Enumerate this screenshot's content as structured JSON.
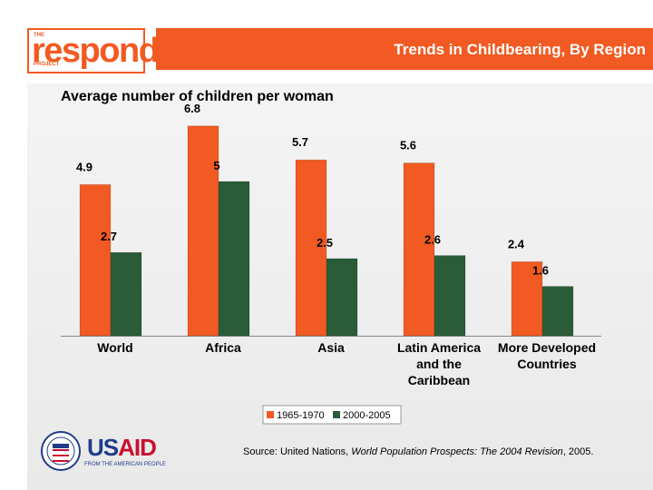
{
  "header": {
    "logo": {
      "top": "THE",
      "word": "respond",
      "bottom": "PROJECT"
    },
    "title": "Trends in Childbearing, By Region"
  },
  "chart_data": {
    "type": "bar",
    "title": "Average number of children per woman",
    "categories": [
      [
        "World"
      ],
      [
        "Africa"
      ],
      [
        "Asia"
      ],
      [
        "Latin America",
        "and the",
        "Caribbean"
      ],
      [
        "More Developed",
        "Countries"
      ]
    ],
    "series": [
      {
        "name": "1965-1970",
        "color": "#f15a22",
        "values": [
          4.9,
          6.8,
          5.7,
          5.6,
          2.4
        ],
        "labels": [
          "4.9",
          "6.8",
          "5.7",
          "5.6",
          "2.4"
        ]
      },
      {
        "name": "2000-2005",
        "color": "#2a5c3a",
        "values": [
          2.7,
          5.0,
          2.5,
          2.6,
          1.6
        ],
        "labels": [
          "2.7",
          "5",
          "2.5",
          "2.6",
          "1.6"
        ]
      }
    ],
    "ylim": [
      0,
      7
    ],
    "xlabel": "",
    "ylabel": "",
    "legend": "bottom-center"
  },
  "footer": {
    "usaid": {
      "name": "USAID",
      "tagline": "FROM THE AMERICAN PEOPLE"
    },
    "source": {
      "prefix": "Source: United Nations, ",
      "work": "World Population Prospects: The 2004 Revision",
      "suffix": ", 2005."
    }
  }
}
